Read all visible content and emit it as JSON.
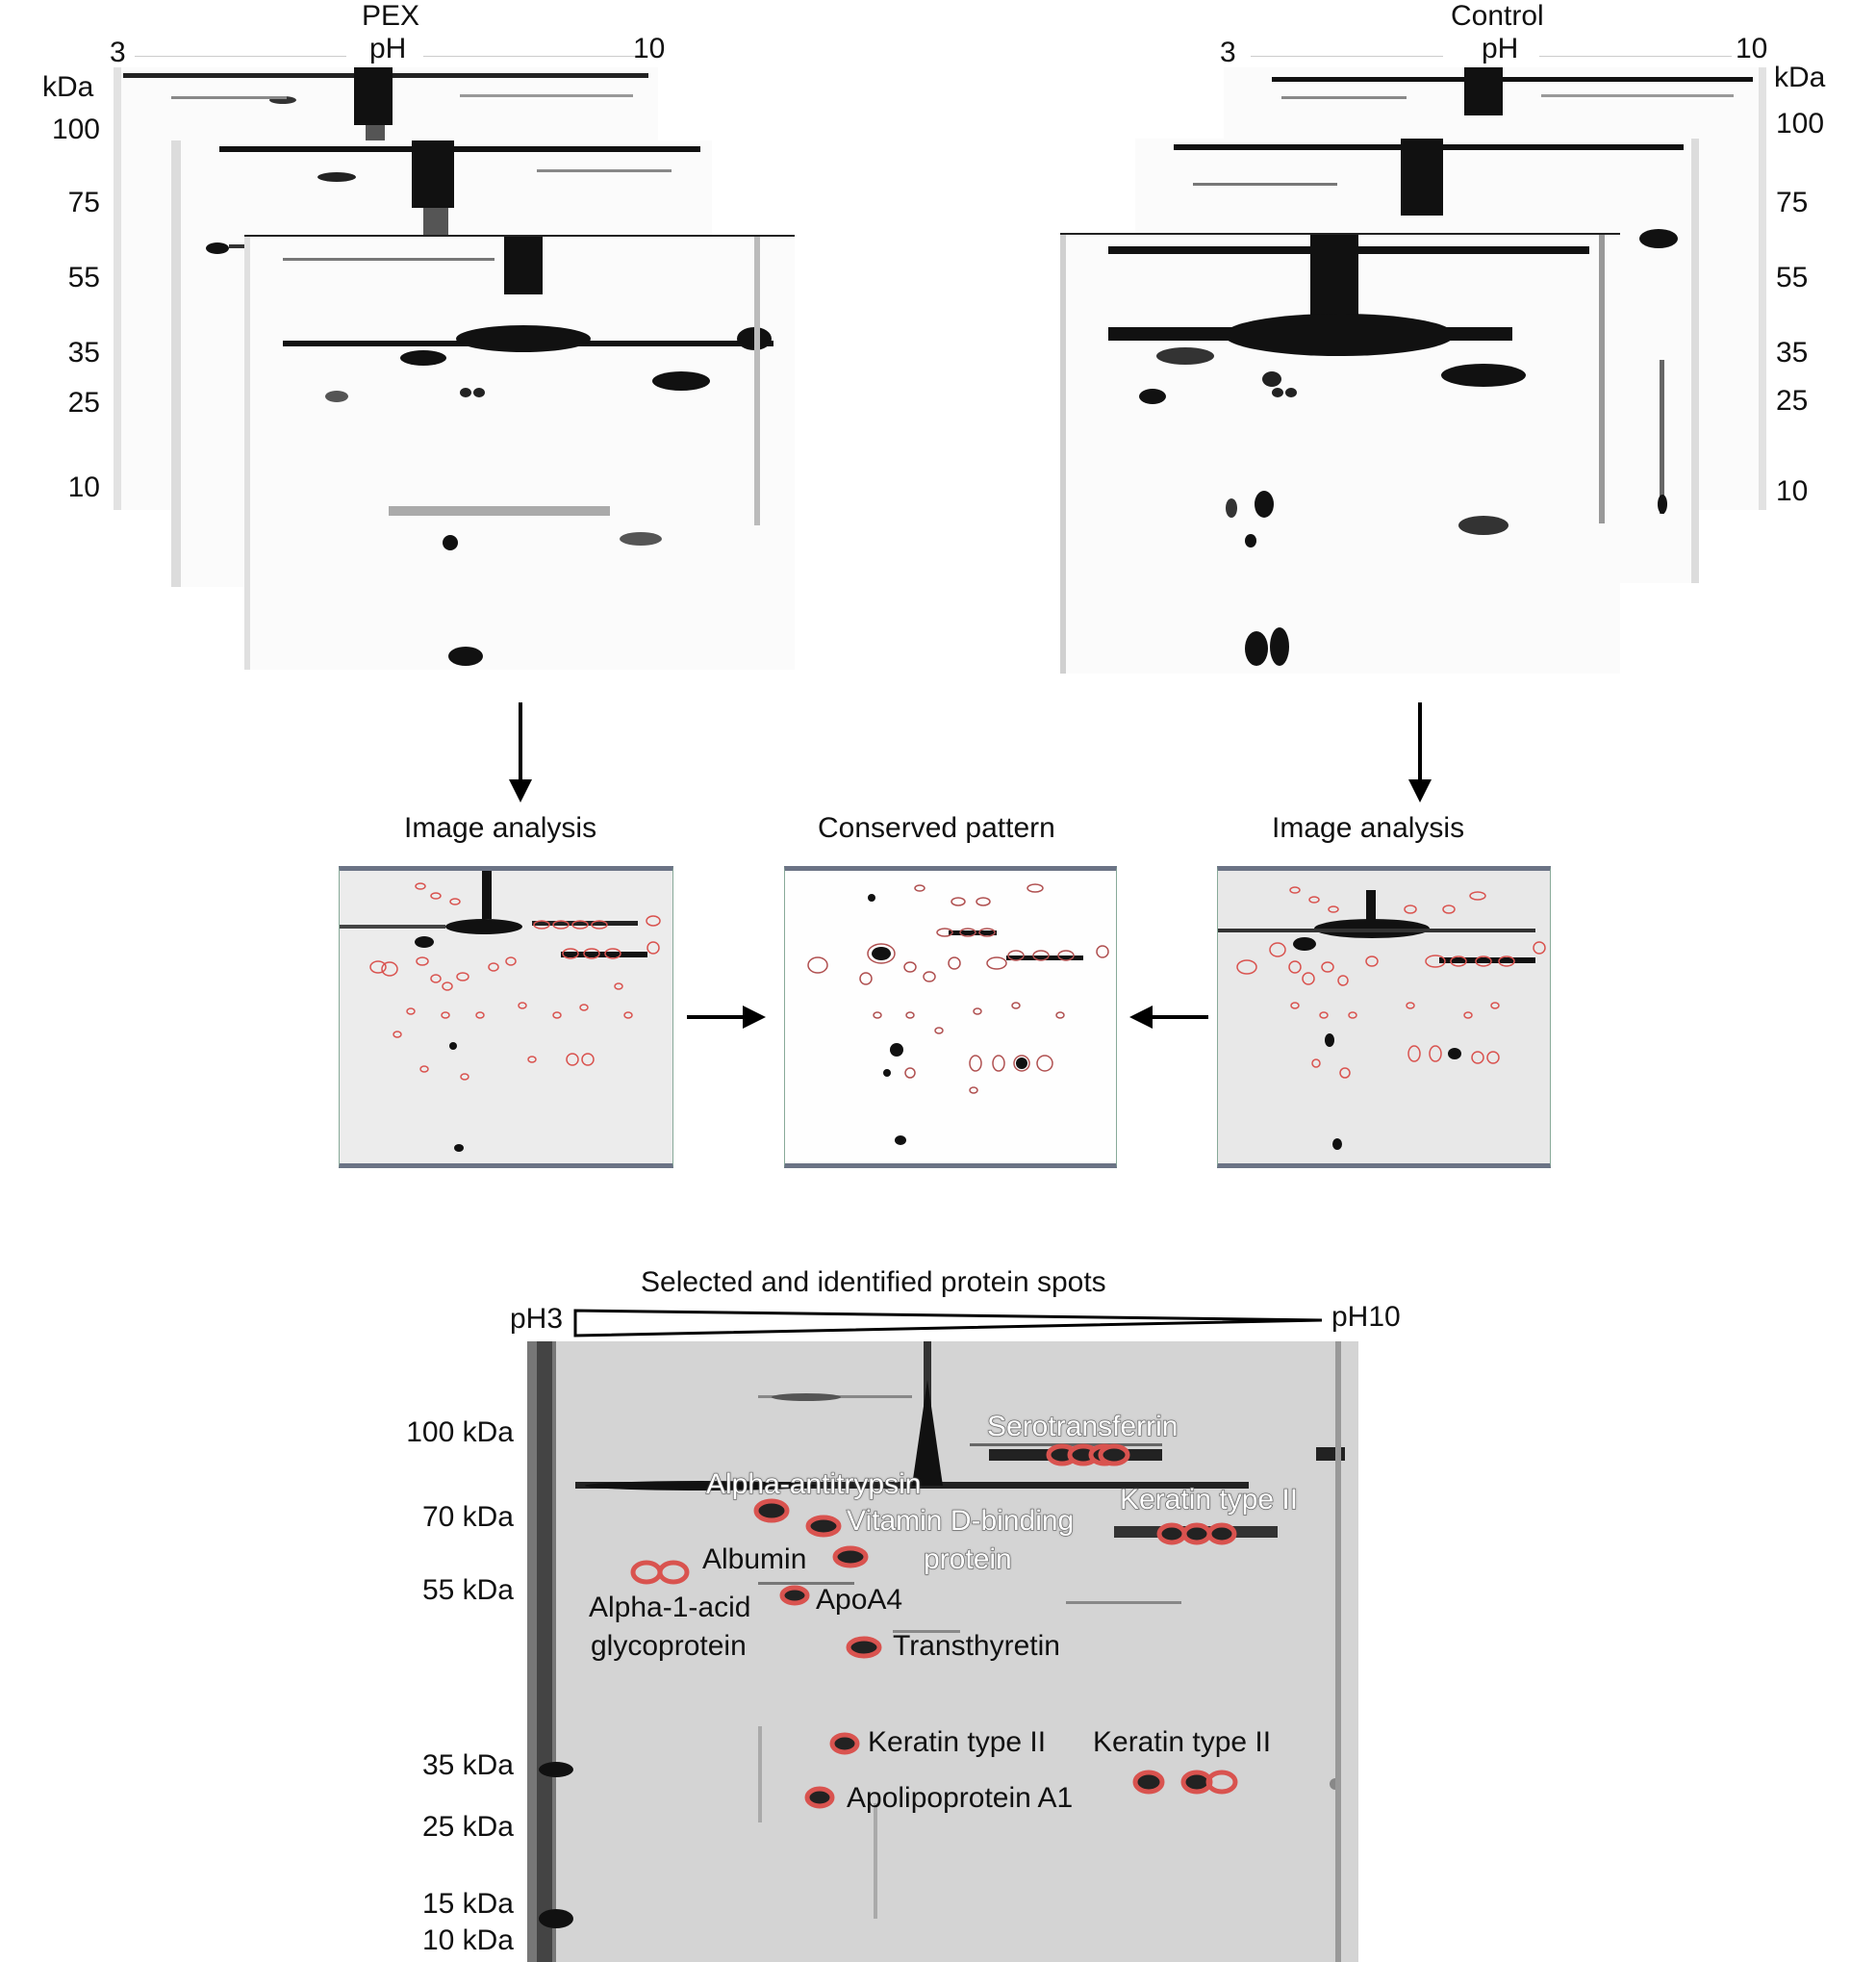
{
  "pex_stack": {
    "title": "PEX",
    "ph_label": "pH",
    "ph_min": "3",
    "ph_max": "10",
    "kda_header": "kDa",
    "kda_ticks": [
      "100",
      "75",
      "55",
      "35",
      "25",
      "10"
    ]
  },
  "control_stack": {
    "title": "Control",
    "ph_label": "pH",
    "ph_min": "3",
    "ph_max": "10",
    "kda_header": "kDa",
    "kda_ticks": [
      "100",
      "75",
      "55",
      "35",
      "25",
      "10"
    ]
  },
  "workflow": {
    "left_label": "Image analysis",
    "center_label": "Conserved pattern",
    "right_label": "Image analysis"
  },
  "identified": {
    "title": "Selected and identified protein spots",
    "ph_start": "pH3",
    "ph_end": "pH10",
    "mw_ticks": [
      "100 kDa",
      "70 kDa",
      "55 kDa",
      "35 kDa",
      "25 kDa",
      "15 kDa",
      "10 kDa"
    ],
    "proteins": {
      "serotransferrin": "Serotransferrin",
      "alpha_antitrypsin": "Alpha-antitrypsin",
      "vitamin_d_line1": "Vitamin D-binding",
      "vitamin_d_line2": "protein",
      "keratin_upper": "Keratin type II",
      "albumin": "Albumin",
      "apoa4": "ApoA4",
      "alpha1_line1": "Alpha-1-acid",
      "alpha1_line2": "glycoprotein",
      "transthyretin": "Transthyretin",
      "keratin_mid": "Keratin type II",
      "keratin_right": "Keratin type II",
      "apolipoprotein": "Apolipoprotein A1"
    }
  },
  "colors": {
    "spot_outline": "#d9534f",
    "gel_background": "#fbfbfb",
    "stain": "#000000",
    "panel_border": "#6b7385"
  }
}
